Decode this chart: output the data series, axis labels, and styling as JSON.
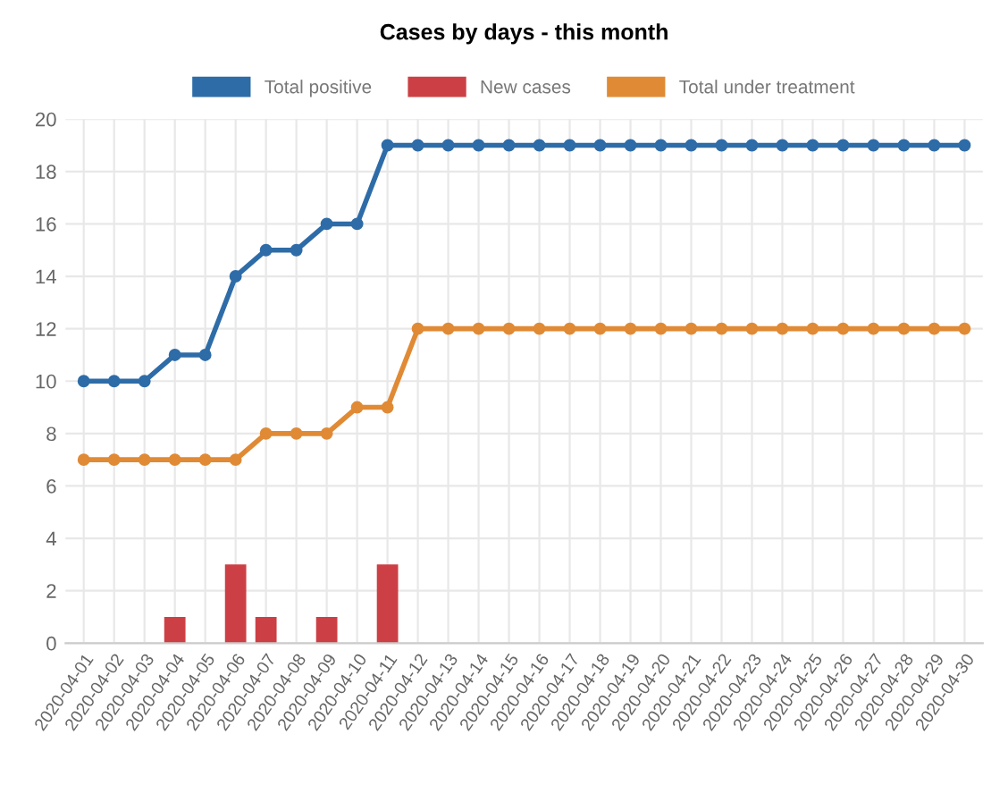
{
  "chart_data": {
    "type": "line",
    "title": "Cases by days - this month",
    "categories": [
      "2020-04-01",
      "2020-04-02",
      "2020-04-03",
      "2020-04-04",
      "2020-04-05",
      "2020-04-06",
      "2020-04-07",
      "2020-04-08",
      "2020-04-09",
      "2020-04-10",
      "2020-04-11",
      "2020-04-12",
      "2020-04-13",
      "2020-04-14",
      "2020-04-15",
      "2020-04-16",
      "2020-04-17",
      "2020-04-18",
      "2020-04-19",
      "2020-04-20",
      "2020-04-21",
      "2020-04-22",
      "2020-04-23",
      "2020-04-24",
      "2020-04-25",
      "2020-04-26",
      "2020-04-27",
      "2020-04-28",
      "2020-04-29",
      "2020-04-30"
    ],
    "series": [
      {
        "name": "Total positive",
        "color": "#2e6ca8",
        "values": [
          10,
          10,
          10,
          11,
          11,
          14,
          15,
          15,
          16,
          16,
          19,
          19,
          19,
          19,
          19,
          19,
          19,
          19,
          19,
          19,
          19,
          19,
          19,
          19,
          19,
          19,
          19,
          19,
          19,
          19
        ]
      },
      {
        "name": "New cases",
        "type": "bar",
        "color": "#cc4045",
        "values": [
          0,
          0,
          0,
          1,
          0,
          3,
          1,
          0,
          1,
          0,
          3,
          0,
          0,
          0,
          0,
          0,
          0,
          0,
          0,
          0,
          0,
          0,
          0,
          0,
          0,
          0,
          0,
          0,
          0,
          0
        ]
      },
      {
        "name": "Total under treatment",
        "color": "#e08a35",
        "values": [
          7,
          7,
          7,
          7,
          7,
          7,
          8,
          8,
          8,
          9,
          9,
          12,
          12,
          12,
          12,
          12,
          12,
          12,
          12,
          12,
          12,
          12,
          12,
          12,
          12,
          12,
          12,
          12,
          12,
          12
        ]
      }
    ],
    "ylim": [
      0,
      20
    ],
    "yticks": [
      0,
      2,
      4,
      6,
      8,
      10,
      12,
      14,
      16,
      18,
      20
    ],
    "grid": true,
    "legend": "top",
    "marker": "circle",
    "line_style": "solid"
  }
}
